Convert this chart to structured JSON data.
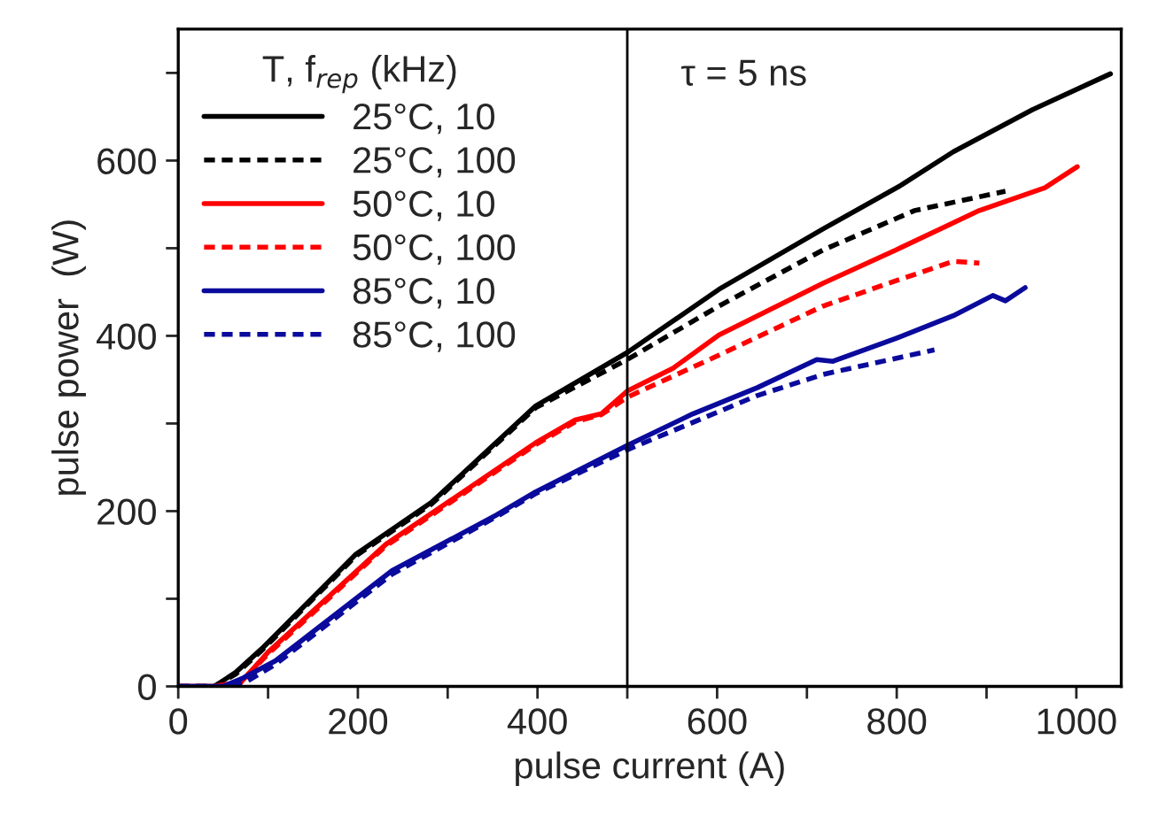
{
  "chart_data": {
    "type": "line",
    "xlabel": "pulse current (A)",
    "ylabel": "pulse power  (W)",
    "legend_title": "T, f$_{rep}$ (kHz)",
    "annotations": [
      "τ = 5 ns"
    ],
    "xlim": [
      0,
      1050
    ],
    "ylim": [
      0,
      750
    ],
    "xticks": [
      0,
      {
        "value": 100,
        "label": null
      },
      200,
      {
        "value": 300,
        "label": null
      },
      400,
      {
        "value": 500,
        "label": null
      },
      600,
      {
        "value": 700,
        "label": null
      },
      800,
      {
        "value": 900,
        "label": null
      },
      1000
    ],
    "yticks": [
      0,
      {
        "value": 100,
        "label": null
      },
      200,
      {
        "value": 300,
        "label": null
      },
      400,
      {
        "value": 500,
        "label": null
      },
      600,
      {
        "value": 700,
        "label": null
      }
    ],
    "grid": false,
    "legend": "top left",
    "marker": "none",
    "ref_lines": [
      {
        "axis": "x",
        "value": 500,
        "color": "#000000",
        "line_style": "solid"
      }
    ],
    "series": [
      {
        "name": "25°C, 10",
        "color": "#000000",
        "line_style": "solid",
        "x": [
          0,
          40,
          64,
          93,
          198,
          282,
          398,
          500,
          602,
          718,
          805,
          863,
          951,
          1038
        ],
        "values": [
          0,
          0,
          16,
          43,
          151,
          210,
          320,
          381,
          453,
          522,
          572,
          610,
          658,
          699
        ]
      },
      {
        "name": "25°C, 100",
        "color": "#000000",
        "line_style": "dashed",
        "x": [
          0,
          40,
          64,
          93,
          198,
          282,
          398,
          500,
          602,
          718,
          820,
          921
        ],
        "values": [
          0,
          0,
          14,
          41,
          149,
          208,
          318,
          373,
          434,
          498,
          543,
          565
        ]
      },
      {
        "name": "50°C, 10",
        "color": "#ff0000",
        "line_style": "solid",
        "x": [
          0,
          40,
          70,
          100,
          231,
          398,
          442,
          471,
          500,
          551,
          602,
          718,
          799,
          892,
          965,
          1001
        ],
        "values": [
          0,
          0,
          5,
          39,
          162,
          278,
          304,
          311,
          337,
          363,
          401,
          460,
          498,
          543,
          569,
          593
        ]
      },
      {
        "name": "50°C, 100",
        "color": "#ff0000",
        "line_style": "dashed",
        "x": [
          0,
          40,
          70,
          100,
          231,
          398,
          442,
          471,
          500,
          602,
          718,
          791,
          863,
          892
        ],
        "values": [
          0,
          0,
          5,
          37,
          160,
          276,
          302,
          310,
          330,
          378,
          434,
          460,
          485,
          483
        ]
      },
      {
        "name": "85°C, 10",
        "color": "#0a0a9c",
        "line_style": "solid",
        "x": [
          0,
          50,
          71,
          108,
          238,
          355,
          398,
          500,
          573,
          645,
          711,
          729,
          799,
          863,
          907,
          921,
          943
        ],
        "values": [
          0,
          0,
          9,
          29,
          132,
          196,
          222,
          275,
          311,
          341,
          373,
          371,
          397,
          423,
          446,
          440,
          455
        ]
      },
      {
        "name": "85°C, 100",
        "color": "#0a0a9c",
        "line_style": "dashed",
        "x": [
          0,
          50,
          75,
          108,
          238,
          355,
          398,
          500,
          645,
          718,
          842
        ],
        "values": [
          0,
          0,
          5,
          25,
          128,
          194,
          220,
          270,
          332,
          356,
          384
        ]
      }
    ]
  }
}
